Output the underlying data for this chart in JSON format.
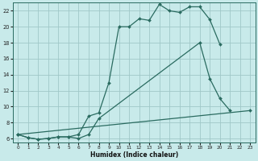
{
  "xlabel": "Humidex (Indice chaleur)",
  "bg_color": "#c8eaea",
  "grid_color": "#a0c8c8",
  "line_color": "#2a6b60",
  "xlim": [
    -0.5,
    23.5
  ],
  "ylim": [
    5.5,
    23.0
  ],
  "yticks": [
    6,
    8,
    10,
    12,
    14,
    16,
    18,
    20,
    22
  ],
  "xticks": [
    0,
    1,
    2,
    3,
    4,
    5,
    6,
    7,
    8,
    9,
    10,
    11,
    12,
    13,
    14,
    15,
    16,
    17,
    18,
    19,
    20,
    21,
    22,
    23
  ],
  "xtick_labels": [
    "0",
    "1",
    "2",
    "3",
    "4",
    "5",
    "6",
    "7",
    "8",
    "9",
    "10",
    "11",
    "12",
    "13",
    "14",
    "15",
    "16",
    "17",
    "18",
    "19",
    "20",
    "21",
    "22",
    "23"
  ],
  "series1_x": [
    0,
    1,
    2,
    3,
    4,
    5,
    6,
    7,
    8,
    9,
    10,
    11,
    12,
    13,
    14,
    15,
    16,
    17,
    18,
    19,
    20
  ],
  "series1_y": [
    6.5,
    6.1,
    5.9,
    6.0,
    6.2,
    6.2,
    6.5,
    8.8,
    9.2,
    13.0,
    20.0,
    20.0,
    21.0,
    20.8,
    22.8,
    22.0,
    21.8,
    22.5,
    22.5,
    20.9,
    17.8
  ],
  "series2_x": [
    0,
    1,
    2,
    3,
    4,
    5,
    6,
    7,
    8,
    18,
    19,
    20,
    21
  ],
  "series2_y": [
    6.5,
    6.1,
    5.9,
    6.0,
    6.2,
    6.2,
    6.0,
    6.5,
    8.5,
    18.0,
    13.5,
    11.0,
    9.5
  ],
  "series3_x": [
    0,
    23
  ],
  "series3_y": [
    6.5,
    9.5
  ]
}
